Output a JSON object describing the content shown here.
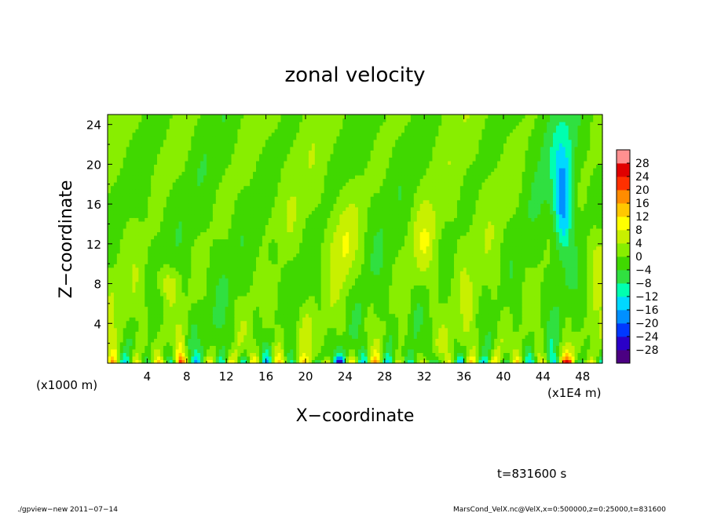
{
  "chart_data": {
    "type": "heatmap",
    "title": "zonal velocity",
    "xlabel": "X−coordinate",
    "ylabel": "Z−coordinate",
    "x_unit": "(x1E4 m)",
    "y_unit": "(x1000 m)",
    "xlim": [
      0,
      50
    ],
    "ylim": [
      0,
      25
    ],
    "x_ticks": [
      "4",
      "8",
      "12",
      "16",
      "20",
      "24",
      "28",
      "32",
      "36",
      "40",
      "44",
      "48"
    ],
    "y_ticks": [
      "4",
      "8",
      "12",
      "16",
      "20",
      "24"
    ],
    "colorbar_labels": [
      "28",
      "24",
      "20",
      "16",
      "12",
      "8",
      "4",
      "0",
      "−4",
      "−8",
      "−12",
      "−16",
      "−20",
      "−24",
      "−28"
    ],
    "colorbar_range": [
      -32,
      32
    ],
    "colormap": [
      "#4b0082",
      "#2a00c8",
      "#0038ff",
      "#0090ff",
      "#00d8ff",
      "#00ffb0",
      "#30e040",
      "#40d800",
      "#88ee00",
      "#c8f000",
      "#ffff00",
      "#ffc800",
      "#ff8c00",
      "#ff3000",
      "#e00000",
      "#ff9090"
    ],
    "features": [
      {
        "desc": "strong positive near surface",
        "x": [
          46,
          47
        ],
        "z": [
          0,
          1
        ],
        "value": 24
      },
      {
        "desc": "strong positive near surface",
        "x": [
          7,
          7.5
        ],
        "z": [
          0,
          1
        ],
        "value": 24
      },
      {
        "desc": "negative column aloft",
        "x": [
          45.5,
          46.5
        ],
        "z": [
          10,
          22
        ],
        "value": -18
      },
      {
        "desc": "positive streak",
        "x": [
          23,
          25
        ],
        "z": [
          5,
          16
        ],
        "value": 10
      }
    ],
    "time_label": "t=831600 s",
    "footer_left": "./gpview−new   2011−07−14",
    "footer_right": "MarsCond_VelX.nc@VelX,x=0:500000,z=0:25000,t=831600"
  }
}
